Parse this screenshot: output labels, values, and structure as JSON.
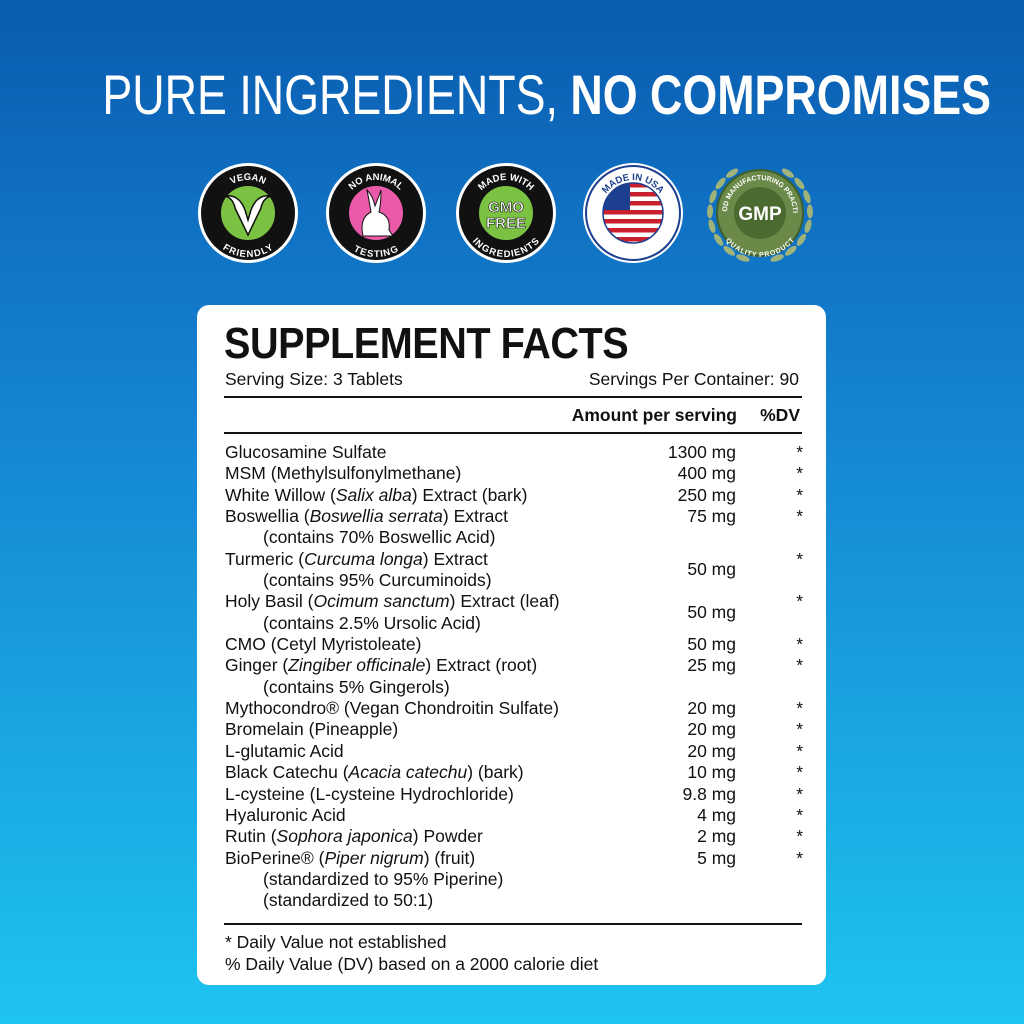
{
  "headline": {
    "thin": "PURE INGREDIENTS,",
    "bold": "NO COMPROMISES"
  },
  "badges": [
    {
      "icon": "vegan-leaf-icon",
      "top": "VEGAN",
      "bottom": "FRIENDLY",
      "color": "#7cc242"
    },
    {
      "icon": "rabbit-icon",
      "top": "NO ANIMAL",
      "bottom": "TESTING",
      "color": "#ea5aa8"
    },
    {
      "icon": "gmo-free-icon",
      "top": "MADE WITH",
      "center1": "GMO",
      "center2": "FREE",
      "bottom": "INGREDIENTS",
      "color": "#7cc242"
    },
    {
      "icon": "usa-flag-icon",
      "top": "MADE IN USA",
      "left": "MADE IN USA",
      "right": "MADE IN USA",
      "color": "#1d3f8f"
    },
    {
      "icon": "gmp-seal-icon",
      "top": "GOOD MANUFACTURING PRACTICE",
      "center1": "GMP",
      "bottom": "QUALITY PRODUCT",
      "color": "#4a6a2f"
    }
  ],
  "facts": {
    "title": "SUPPLEMENT FACTS",
    "serving_size": "Serving Size: 3 Tablets",
    "servings_per_container": "Servings Per Container: 90",
    "col_amount": "Amount per serving",
    "col_dv": "%DV",
    "rows": [
      {
        "pre": "Glucosamine Sulfate",
        "it": "",
        "post": "",
        "amount": "1300 mg",
        "dv": "*"
      },
      {
        "pre": "MSM (Methylsulfonylmethane)",
        "it": "",
        "post": "",
        "amount": "400 mg",
        "dv": "*"
      },
      {
        "pre": "White Willow (",
        "it": "Salix alba",
        "post": ") Extract (bark)",
        "amount": "250 mg",
        "dv": "*"
      },
      {
        "pre": "Boswellia (",
        "it": "Boswellia serrata",
        "post": ") Extract",
        "amount": "75 mg",
        "dv": "*",
        "sub": [
          "(contains 70% Boswellic Acid)"
        ]
      },
      {
        "pre": "Turmeric (",
        "it": "Curcuma longa",
        "post": ") Extract",
        "amount": "50 mg",
        "dv": "*",
        "sub": [
          "(contains 95% Curcuminoids)"
        ],
        "mid": true
      },
      {
        "pre": "Holy Basil (",
        "it": "Ocimum sanctum",
        "post": ") Extract (leaf)",
        "amount": "50 mg",
        "dv": "*",
        "sub": [
          "(contains 2.5% Ursolic Acid)"
        ],
        "mid": true
      },
      {
        "pre": "CMO (Cetyl Myristoleate)",
        "it": "",
        "post": "",
        "amount": "50 mg",
        "dv": "*"
      },
      {
        "pre": "Ginger (",
        "it": "Zingiber officinale",
        "post": ") Extract (root)",
        "amount": "25 mg",
        "dv": "*",
        "sub": [
          "(contains 5% Gingerols)"
        ]
      },
      {
        "pre": "Mythocondro® (Vegan Chondroitin Sulfate)",
        "it": "",
        "post": "",
        "amount": "20 mg",
        "dv": "*"
      },
      {
        "pre": "Bromelain (Pineapple)",
        "it": "",
        "post": "",
        "amount": "20 mg",
        "dv": "*"
      },
      {
        "pre": "L-glutamic Acid",
        "it": "",
        "post": "",
        "amount": "20 mg",
        "dv": "*"
      },
      {
        "pre": "Black Catechu (",
        "it": "Acacia catechu",
        "post": ") (bark)",
        "amount": "10 mg",
        "dv": "*"
      },
      {
        "pre": "L-cysteine (L-cysteine Hydrochloride)",
        "it": "",
        "post": "",
        "amount": "9.8 mg",
        "dv": "*"
      },
      {
        "pre": "Hyaluronic Acid",
        "it": "",
        "post": "",
        "amount": "4 mg",
        "dv": "*"
      },
      {
        "pre": "Rutin (",
        "it": "Sophora japonica",
        "post": ") Powder",
        "amount": "2 mg",
        "dv": "*"
      },
      {
        "pre": "BioPerine® (",
        "it": "Piper nigrum",
        "post": ") (fruit)",
        "amount": "5 mg",
        "dv": "*",
        "sub": [
          "(standardized to 95% Piperine)",
          "(standardized to 50:1)"
        ]
      }
    ],
    "footnote1": "* Daily Value not established",
    "footnote2": "% Daily Value (DV) based on a 2000 calorie diet"
  }
}
